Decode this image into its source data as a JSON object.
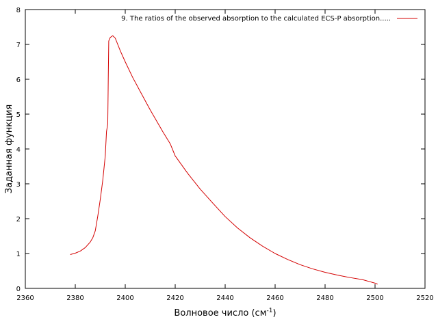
{
  "chart_data": {
    "type": "line",
    "xlabel": "Волновое число (см",
    "xlabel_sup": "-1",
    "xlabel_close": ")",
    "ylabel": "Заданная функция",
    "xlim": [
      2360,
      2520
    ],
    "ylim": [
      0,
      8
    ],
    "xticks": [
      "2360",
      "2380",
      "2400",
      "2420",
      "2440",
      "2460",
      "2480",
      "2500",
      "2520"
    ],
    "yticks": [
      "0",
      "1",
      "2",
      "3",
      "4",
      "5",
      "6",
      "7",
      "8"
    ],
    "grid": false,
    "legend_position": "top-right",
    "colors": {
      "series": "#d40000",
      "axes": "#000000"
    },
    "series": [
      {
        "name": "9. The ratios of the observed absorption to the calculated ECS-P absorption.....",
        "x": [
          2378,
          2380,
          2382,
          2384,
          2386,
          2387,
          2388,
          2389,
          2390,
          2391,
          2392,
          2392.5,
          2393,
          2393.2,
          2393.4,
          2394,
          2395,
          2396,
          2397,
          2398,
          2400,
          2403,
          2406,
          2410,
          2415,
          2418,
          2420,
          2425,
          2430,
          2435,
          2440,
          2445,
          2450,
          2455,
          2460,
          2465,
          2470,
          2475,
          2480,
          2485,
          2490,
          2495,
          2498,
          2500,
          2501
        ],
        "y": [
          0.97,
          1.01,
          1.07,
          1.17,
          1.33,
          1.45,
          1.65,
          2.07,
          2.55,
          3.1,
          3.8,
          4.5,
          4.72,
          6.0,
          7.1,
          7.2,
          7.25,
          7.18,
          7.0,
          6.82,
          6.5,
          6.05,
          5.65,
          5.12,
          4.5,
          4.15,
          3.8,
          3.3,
          2.85,
          2.45,
          2.06,
          1.73,
          1.45,
          1.21,
          1.0,
          0.83,
          0.68,
          0.56,
          0.46,
          0.38,
          0.31,
          0.25,
          0.19,
          0.15,
          0.12
        ]
      }
    ]
  }
}
